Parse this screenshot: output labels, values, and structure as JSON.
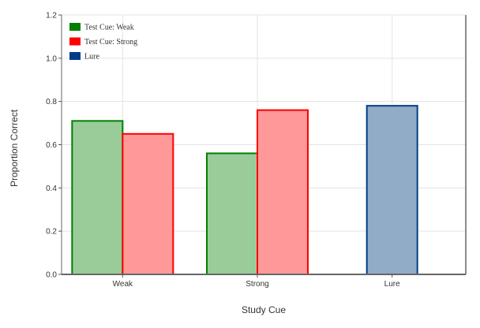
{
  "chart_data": {
    "type": "bar",
    "xlabel": "Study Cue",
    "ylabel": "Proportion Correct",
    "ylim": [
      0,
      1.2
    ],
    "yticks": [
      0,
      0.2,
      0.4,
      0.6,
      0.8,
      1.0,
      1.2
    ],
    "ytick_labels": [
      "0.0",
      "0.2",
      "0.4",
      "0.6",
      "0.8",
      "1.0",
      "1.2"
    ],
    "categories": [
      "Weak",
      "Strong",
      "Lure"
    ],
    "grid": true,
    "legend_position": "top-left",
    "series": [
      {
        "name": "Test Cue: Weak",
        "color": "#008000",
        "fill": "#99cc99",
        "values": [
          0.71,
          0.56,
          null
        ]
      },
      {
        "name": "Test Cue: Strong",
        "color": "#ff0000",
        "fill": "#ff9999",
        "values": [
          0.65,
          0.76,
          null
        ]
      },
      {
        "name": "Lure",
        "color": "#003f87",
        "fill": "#91acc6",
        "values": [
          null,
          null,
          0.78
        ]
      }
    ]
  }
}
